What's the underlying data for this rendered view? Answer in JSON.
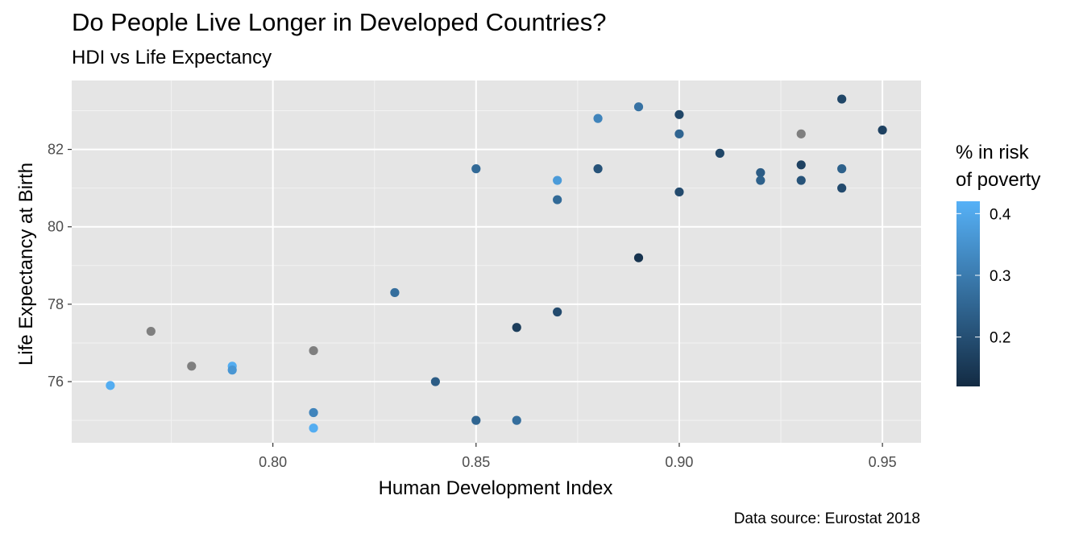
{
  "chart_data": {
    "type": "scatter",
    "title": "Do People Live Longer in Developed Countries?",
    "subtitle": "HDI vs Life Expectancy",
    "caption": "Data source: Eurostat 2018",
    "xlabel": "Human Development Index",
    "ylabel": "Life Expectancy at Birth",
    "xlim": [
      0.7505,
      0.9595
    ],
    "ylim": [
      74.42,
      83.78
    ],
    "xticks": [
      "0.80",
      "0.85",
      "0.90",
      "0.95"
    ],
    "xtick_values": [
      0.8,
      0.85,
      0.9,
      0.95
    ],
    "yticks": [
      "76",
      "78",
      "80",
      "82"
    ],
    "ytick_values": [
      76,
      78,
      80,
      82
    ],
    "grid": true,
    "panel_background": "#e5e5e5",
    "na_color": "#7f7f7f",
    "legend": {
      "title_line1": "% in risk",
      "title_line2": "of poverty",
      "position": "right",
      "range": [
        0.12,
        0.42
      ],
      "low_color": "#132b43",
      "high_color": "#56b1f7",
      "ticks": [
        "0.2",
        "0.3",
        "0.4"
      ],
      "tick_values": [
        0.2,
        0.3,
        0.4
      ]
    },
    "points": [
      {
        "x": 0.76,
        "y": 75.9,
        "poverty": 0.41
      },
      {
        "x": 0.77,
        "y": 77.3,
        "poverty": null
      },
      {
        "x": 0.78,
        "y": 76.4,
        "poverty": null
      },
      {
        "x": 0.79,
        "y": 76.4,
        "poverty": 0.41
      },
      {
        "x": 0.79,
        "y": 76.3,
        "poverty": 0.36
      },
      {
        "x": 0.81,
        "y": 76.8,
        "poverty": null
      },
      {
        "x": 0.81,
        "y": 75.2,
        "poverty": 0.32
      },
      {
        "x": 0.81,
        "y": 74.8,
        "poverty": 0.41
      },
      {
        "x": 0.83,
        "y": 78.3,
        "poverty": 0.27
      },
      {
        "x": 0.84,
        "y": 76.0,
        "poverty": 0.23
      },
      {
        "x": 0.85,
        "y": 81.5,
        "poverty": 0.26
      },
      {
        "x": 0.85,
        "y": 75.0,
        "poverty": 0.25
      },
      {
        "x": 0.86,
        "y": 77.4,
        "poverty": 0.16
      },
      {
        "x": 0.86,
        "y": 75.0,
        "poverty": 0.27
      },
      {
        "x": 0.87,
        "y": 81.2,
        "poverty": 0.37
      },
      {
        "x": 0.87,
        "y": 80.7,
        "poverty": 0.26
      },
      {
        "x": 0.87,
        "y": 77.8,
        "poverty": 0.19
      },
      {
        "x": 0.88,
        "y": 82.8,
        "poverty": 0.32
      },
      {
        "x": 0.88,
        "y": 81.5,
        "poverty": 0.21
      },
      {
        "x": 0.89,
        "y": 83.1,
        "poverty": 0.28
      },
      {
        "x": 0.89,
        "y": 79.2,
        "poverty": 0.14
      },
      {
        "x": 0.9,
        "y": 82.9,
        "poverty": 0.18
      },
      {
        "x": 0.9,
        "y": 82.4,
        "poverty": 0.25
      },
      {
        "x": 0.9,
        "y": 80.9,
        "poverty": 0.19
      },
      {
        "x": 0.91,
        "y": 81.9,
        "poverty": 0.18
      },
      {
        "x": 0.92,
        "y": 81.4,
        "poverty": 0.23
      },
      {
        "x": 0.92,
        "y": 81.2,
        "poverty": 0.24
      },
      {
        "x": 0.93,
        "y": 82.4,
        "poverty": null
      },
      {
        "x": 0.93,
        "y": 81.6,
        "poverty": 0.17
      },
      {
        "x": 0.93,
        "y": 81.2,
        "poverty": 0.21
      },
      {
        "x": 0.94,
        "y": 83.3,
        "poverty": 0.18
      },
      {
        "x": 0.94,
        "y": 81.5,
        "poverty": 0.24
      },
      {
        "x": 0.94,
        "y": 81.0,
        "poverty": 0.19
      },
      {
        "x": 0.95,
        "y": 82.5,
        "poverty": 0.17
      }
    ]
  }
}
